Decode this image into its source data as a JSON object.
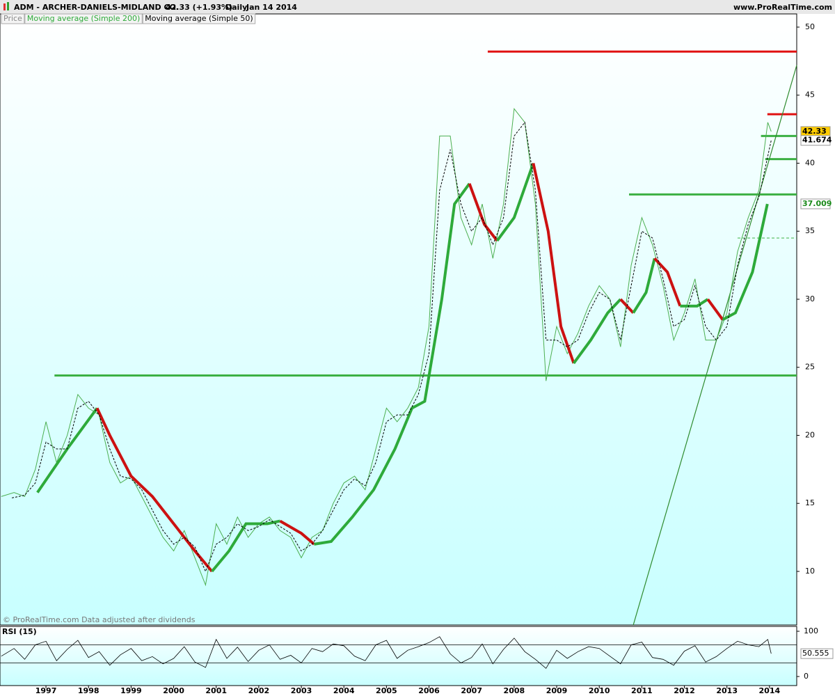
{
  "chart_data": {
    "type": "line",
    "title": "ADM - ARCHER-DANIELS-MIDLAND CO.",
    "change_text": "42.33 (+1.93%)",
    "period": "Daily",
    "date": "Jan 14 2014",
    "source": "www.ProRealTime.com",
    "footer": "© ProRealTime.com Data adjusted after dividends",
    "xlim": [
      1995.92,
      2014.64
    ],
    "xticks": [
      1997,
      1998,
      1999,
      2000,
      2001,
      2002,
      2003,
      2004,
      2005,
      2006,
      2007,
      2008,
      2009,
      2010,
      2011,
      2012,
      2013,
      2014
    ],
    "ylim": [
      6.06,
      50.97
    ],
    "yticks": [
      10,
      15,
      20,
      25,
      30,
      35,
      40,
      45,
      50
    ],
    "series": [
      {
        "name": "Price",
        "color": "#4caf50",
        "legend_color": "#888888",
        "width": 1,
        "x": [
          1995.95,
          1996.25,
          1996.5,
          1996.75,
          1997,
          1997.25,
          1997.5,
          1997.75,
          1998,
          1998.25,
          1998.5,
          1998.75,
          1999,
          1999.25,
          1999.5,
          1999.75,
          2000,
          2000.25,
          2000.5,
          2000.75,
          2001,
          2001.25,
          2001.5,
          2001.75,
          2002,
          2002.25,
          2002.5,
          2002.75,
          2003,
          2003.25,
          2003.5,
          2003.75,
          2004,
          2004.25,
          2004.5,
          2004.75,
          2005,
          2005.25,
          2005.5,
          2005.75,
          2006,
          2006.25,
          2006.5,
          2006.75,
          2007,
          2007.25,
          2007.5,
          2007.75,
          2008,
          2008.25,
          2008.5,
          2008.75,
          2009,
          2009.25,
          2009.5,
          2009.75,
          2010,
          2010.25,
          2010.5,
          2010.75,
          2011,
          2011.25,
          2011.5,
          2011.75,
          2012,
          2012.25,
          2012.5,
          2012.75,
          2013,
          2013.25,
          2013.5,
          2013.75,
          2013.96,
          2014.04
        ],
        "values": [
          15.5,
          15.8,
          15.5,
          17.5,
          21,
          18,
          20,
          23,
          22,
          21.5,
          18,
          16.5,
          17,
          15.5,
          14,
          12.5,
          11.5,
          13,
          11,
          9,
          13.5,
          12,
          14,
          12.5,
          13.5,
          14,
          13,
          12.5,
          11,
          12.5,
          13,
          15,
          16.5,
          17,
          16,
          19,
          22,
          21,
          22,
          23.5,
          28,
          42,
          42,
          36,
          34,
          37,
          33,
          37,
          44,
          43,
          37,
          24,
          28,
          26,
          27.5,
          29.5,
          31,
          30,
          26.5,
          32.5,
          36,
          34,
          31,
          27,
          29,
          31.5,
          27,
          27,
          29,
          33.5,
          36,
          38,
          43,
          42.33
        ]
      },
      {
        "name": "Moving average (Simple 200)",
        "color": "#2eaa3a",
        "falling_color": "#cc1111",
        "width": 4,
        "x": [
          1996.8,
          1997.5,
          1998.2,
          1998.5,
          1999,
          1999.5,
          2000,
          2000.5,
          2000.9,
          2001.3,
          2001.7,
          2002.2,
          2002.5,
          2003,
          2003.3,
          2003.7,
          2004.2,
          2004.7,
          2005.2,
          2005.6,
          2005.9,
          2006.3,
          2006.6,
          2006.95,
          2007.3,
          2007.6,
          2008,
          2008.45,
          2008.8,
          2009.1,
          2009.4,
          2009.8,
          2010.2,
          2010.5,
          2010.8,
          2011.1,
          2011.3,
          2011.6,
          2011.9,
          2012.3,
          2012.55,
          2012.9,
          2013.2,
          2013.6,
          2013.95
        ],
        "values": [
          15.8,
          19,
          22,
          20,
          17,
          15.5,
          13.5,
          11.5,
          10,
          11.5,
          13.5,
          13.5,
          13.7,
          12.8,
          12,
          12.2,
          14,
          16,
          19,
          22,
          22.5,
          30,
          37,
          38.5,
          35.5,
          34.3,
          36,
          40,
          35,
          28,
          25.3,
          27,
          29,
          30,
          29,
          30.5,
          33,
          32,
          29.5,
          29.5,
          30,
          28.5,
          29,
          32,
          37
        ]
      },
      {
        "name": "Moving average (Simple 50)",
        "color": "#000000",
        "dash": "3,2",
        "width": 1,
        "x": [
          1996.2,
          1996.5,
          1996.75,
          1997,
          1997.25,
          1997.5,
          1997.75,
          1998,
          1998.25,
          1998.5,
          1998.75,
          1999,
          1999.25,
          1999.5,
          1999.75,
          2000,
          2000.25,
          2000.5,
          2000.75,
          2001,
          2001.25,
          2001.5,
          2001.75,
          2002,
          2002.25,
          2002.5,
          2002.75,
          2003,
          2003.25,
          2003.5,
          2003.75,
          2004,
          2004.25,
          2004.5,
          2004.75,
          2005,
          2005.25,
          2005.5,
          2005.75,
          2006,
          2006.25,
          2006.5,
          2006.75,
          2007,
          2007.25,
          2007.5,
          2007.75,
          2008,
          2008.25,
          2008.5,
          2008.75,
          2009,
          2009.25,
          2009.5,
          2009.75,
          2010,
          2010.25,
          2010.5,
          2010.75,
          2011,
          2011.25,
          2011.5,
          2011.75,
          2012,
          2012.25,
          2012.5,
          2012.75,
          2013,
          2013.25,
          2013.5,
          2013.75,
          2014.04
        ],
        "values": [
          15.4,
          15.6,
          16.5,
          19.5,
          19,
          19,
          22,
          22.5,
          21.5,
          19,
          17,
          16.8,
          16,
          14.5,
          13,
          12,
          12.5,
          11.8,
          10,
          12,
          12.5,
          13.5,
          13,
          13.3,
          13.8,
          13.3,
          12.8,
          11.5,
          12,
          13,
          14.5,
          16,
          16.8,
          16.3,
          18,
          21,
          21.5,
          21.5,
          23,
          26,
          38,
          41,
          37,
          35,
          36,
          34,
          36,
          42,
          43,
          38,
          27,
          27,
          26.5,
          27,
          29,
          30.5,
          30,
          27,
          31,
          35,
          34.5,
          31.5,
          28,
          28.5,
          31,
          28,
          27,
          28,
          32.5,
          35.5,
          37.5,
          41.674
        ]
      }
    ],
    "hlines": [
      {
        "value": 48.2,
        "x_start": 2007.38,
        "color": "#e01010"
      },
      {
        "value": 24.4,
        "x_start": 1997.2,
        "color": "#3cb043"
      },
      {
        "value": 37.7,
        "x_start": 2010.7,
        "color": "#3cb043"
      },
      {
        "value": 43.6,
        "x_start": 2013.95,
        "color": "#e01010"
      },
      {
        "value": 42,
        "x_start": 2013.8,
        "color": "#3cb043"
      },
      {
        "value": 40.3,
        "x_start": 2013.9,
        "color": "#3cb043"
      },
      {
        "value": 34.5,
        "x_start": 2013.25,
        "color": "#3cb043",
        "dash": "4,3"
      }
    ],
    "trendline": {
      "x": [
        2010.8,
        2014.64
      ],
      "y": [
        6.06,
        47.2
      ],
      "color": "#2e8b2e"
    },
    "price_labels": [
      {
        "value": 42.33,
        "bg": "#ffcc00",
        "color": "#000000"
      },
      {
        "value": 41.674,
        "bg": "#ffffff",
        "color": "#000000"
      },
      {
        "value": 37.009,
        "bg": "#ffffff",
        "color": "#1a8a1a"
      }
    ],
    "rsi": {
      "name": "RSI (15)",
      "ylim": [
        0,
        100
      ],
      "yticks": [
        0,
        100
      ],
      "levels": [
        70,
        30
      ],
      "x": [
        1995.95,
        1996.25,
        1996.5,
        1996.75,
        1997,
        1997.25,
        1997.5,
        1997.75,
        1998,
        1998.25,
        1998.5,
        1998.75,
        1999,
        1999.25,
        1999.5,
        1999.75,
        2000,
        2000.25,
        2000.5,
        2000.75,
        2001,
        2001.25,
        2001.5,
        2001.75,
        2002,
        2002.25,
        2002.5,
        2002.75,
        2003,
        2003.25,
        2003.5,
        2003.75,
        2004,
        2004.25,
        2004.5,
        2004.75,
        2005,
        2005.25,
        2005.5,
        2005.75,
        2006,
        2006.25,
        2006.5,
        2006.75,
        2007,
        2007.25,
        2007.5,
        2007.75,
        2008,
        2008.25,
        2008.5,
        2008.75,
        2009,
        2009.25,
        2009.5,
        2009.75,
        2010,
        2010.25,
        2010.5,
        2010.75,
        2011,
        2011.25,
        2011.5,
        2011.75,
        2012,
        2012.25,
        2012.5,
        2012.75,
        2013,
        2013.25,
        2013.5,
        2013.75,
        2013.96,
        2014.04
      ],
      "values": [
        45,
        62,
        38,
        70,
        78,
        35,
        60,
        80,
        42,
        55,
        25,
        48,
        62,
        35,
        44,
        28,
        40,
        66,
        32,
        20,
        82,
        40,
        65,
        33,
        58,
        70,
        38,
        47,
        30,
        62,
        55,
        72,
        68,
        45,
        35,
        70,
        80,
        40,
        58,
        66,
        75,
        88,
        50,
        30,
        42,
        72,
        28,
        60,
        85,
        55,
        38,
        18,
        58,
        40,
        55,
        66,
        62,
        45,
        28,
        70,
        76,
        42,
        38,
        25,
        56,
        68,
        32,
        44,
        62,
        78,
        70,
        66,
        82,
        50.555
      ]
    }
  }
}
